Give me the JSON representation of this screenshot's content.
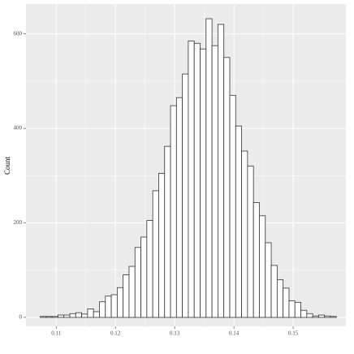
{
  "chart_data": {
    "type": "histogram",
    "y_label": "Count",
    "bins": [
      0.1073,
      0.1083,
      0.1093,
      0.1103,
      0.1113,
      0.1123,
      0.1133,
      0.1143,
      0.1153,
      0.1163,
      0.1173,
      0.1183,
      0.1193,
      0.1203,
      0.1213,
      0.1223,
      0.1233,
      0.1243,
      0.1253,
      0.1263,
      0.1273,
      0.1283,
      0.1293,
      0.1303,
      0.1313,
      0.1323,
      0.1333,
      0.1343,
      0.1353,
      0.1363,
      0.1373,
      0.1383,
      0.1393,
      0.1403,
      0.1413,
      0.1423,
      0.1433,
      0.1443,
      0.1453,
      0.1463,
      0.1473,
      0.1483,
      0.1493,
      0.1503,
      0.1513,
      0.1523,
      0.1533,
      0.1543,
      0.1553,
      0.1563,
      0.1573
    ],
    "counts": [
      2,
      2,
      2,
      5,
      5,
      8,
      10,
      7,
      18,
      12,
      33,
      45,
      48,
      63,
      90,
      108,
      148,
      170,
      205,
      268,
      305,
      362,
      448,
      465,
      515,
      585,
      580,
      568,
      632,
      575,
      620,
      550,
      470,
      405,
      352,
      320,
      243,
      215,
      158,
      110,
      80,
      62,
      35,
      32,
      15,
      8,
      3,
      5,
      3,
      2
    ],
    "color": "#ffffff",
    "edge_color": "#333333",
    "xlim": [
      0.1049,
      0.1589
    ],
    "ylim": [
      -19,
      663
    ],
    "xticks": [
      0.11,
      0.12,
      0.13,
      0.14,
      0.15
    ],
    "yticks": [
      0,
      200,
      400,
      600
    ],
    "grid": true,
    "background": "#ebebeb"
  }
}
